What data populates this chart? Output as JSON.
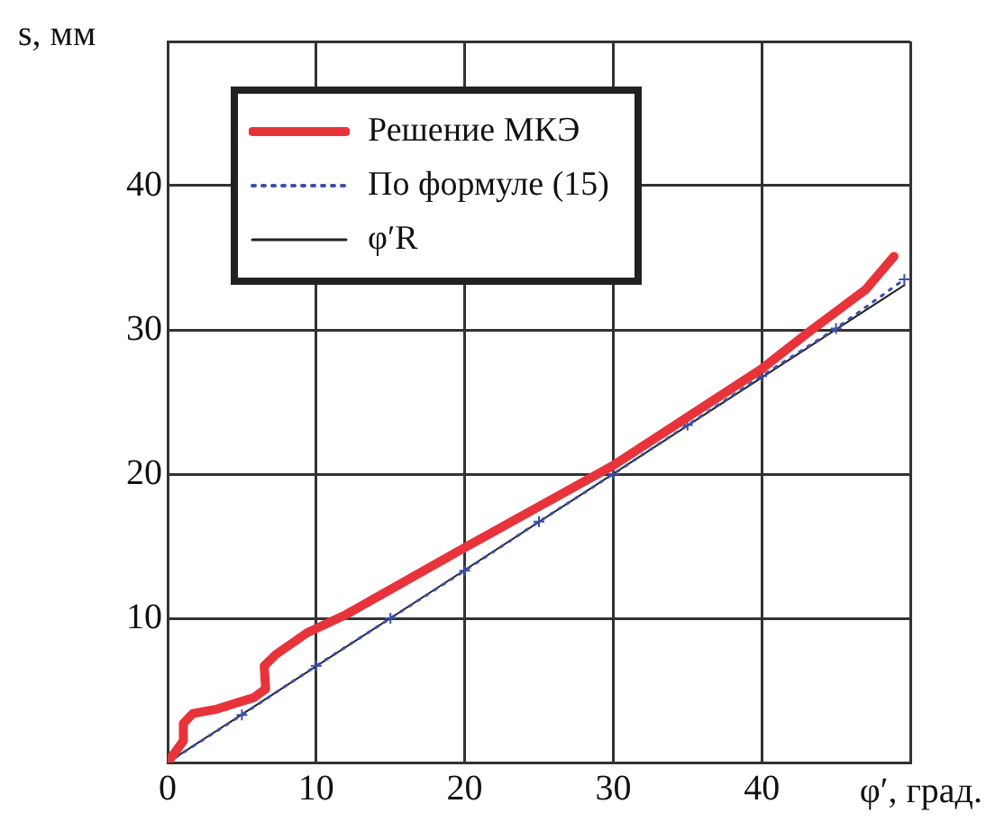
{
  "chart_data": {
    "type": "line",
    "xlabel": "φ′, град.",
    "ylabel": "s, мм",
    "xlim": [
      0,
      50
    ],
    "ylim": [
      0,
      50
    ],
    "xticks": [
      0,
      10,
      20,
      30,
      40,
      {
        "value": 50,
        "label": null
      }
    ],
    "yticks": [
      {
        "value": 0,
        "label": null
      },
      10,
      20,
      30,
      40,
      {
        "value": 50,
        "label": null
      }
    ],
    "grid": true,
    "legend": "top left",
    "series": [
      {
        "name": "Решение МКЭ",
        "color": "#e8333a",
        "line_style": "solid",
        "marker": "none",
        "x": [
          0,
          1.06,
          1.06,
          1.7,
          3.3,
          5.8,
          6.6,
          6.5,
          7.3,
          9.4,
          11.9,
          20,
          30,
          40,
          43.1,
          47,
          48.9
        ],
        "values": [
          0,
          1.5,
          2.7,
          3.4,
          3.7,
          4.5,
          5.1,
          6.7,
          7.5,
          9.0,
          10.2,
          14.9,
          20.6,
          27.3,
          29.8,
          32.8,
          35.1
        ]
      },
      {
        "name": "По формуле (15)",
        "color": "#3c4fa8",
        "line_style": "dotted",
        "marker": "cross",
        "x": [
          0,
          5,
          10,
          15,
          20,
          25,
          30,
          35,
          40,
          45,
          49.6
        ],
        "values": [
          0,
          3.3,
          6.7,
          10,
          13.3,
          16.7,
          20,
          23.4,
          26.8,
          30.1,
          33.5
        ]
      },
      {
        "name": "φ′R",
        "color": "#222222",
        "line_style": "solid",
        "marker": "none",
        "x": [
          0,
          49.6
        ],
        "values": [
          0,
          33.1
        ]
      }
    ]
  }
}
